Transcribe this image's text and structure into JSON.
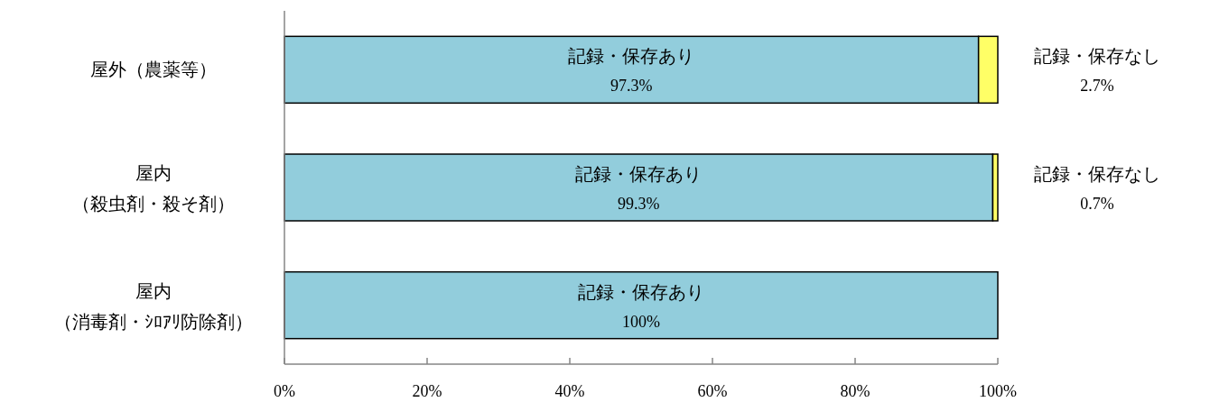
{
  "chart_data": {
    "type": "bar",
    "orientation": "horizontal",
    "stacked": true,
    "categories": [
      "屋外（農薬等）",
      "屋内（殺虫剤・殺そ剤）",
      "屋内（消毒剤・ｼﾛｱﾘ防除剤）"
    ],
    "series": [
      {
        "name": "記録・保存あり",
        "color": "#92cddc",
        "values": [
          97.3,
          99.3,
          100
        ],
        "value_labels": [
          "97.3%",
          "99.3%",
          "100%"
        ]
      },
      {
        "name": "記録・保存なし",
        "color": "#ffff66",
        "values": [
          2.7,
          0.7,
          null
        ],
        "value_labels": [
          "2.7%",
          "0.7%",
          null
        ]
      }
    ],
    "xlim": [
      0,
      100
    ],
    "xticks": [
      {
        "value": 0,
        "label": "0%"
      },
      {
        "value": 20,
        "label": "20%"
      },
      {
        "value": 40,
        "label": "40%"
      },
      {
        "value": 60,
        "label": "60%"
      },
      {
        "value": 80,
        "label": "80%"
      },
      {
        "value": 100,
        "label": "100%"
      }
    ],
    "grid": false
  }
}
